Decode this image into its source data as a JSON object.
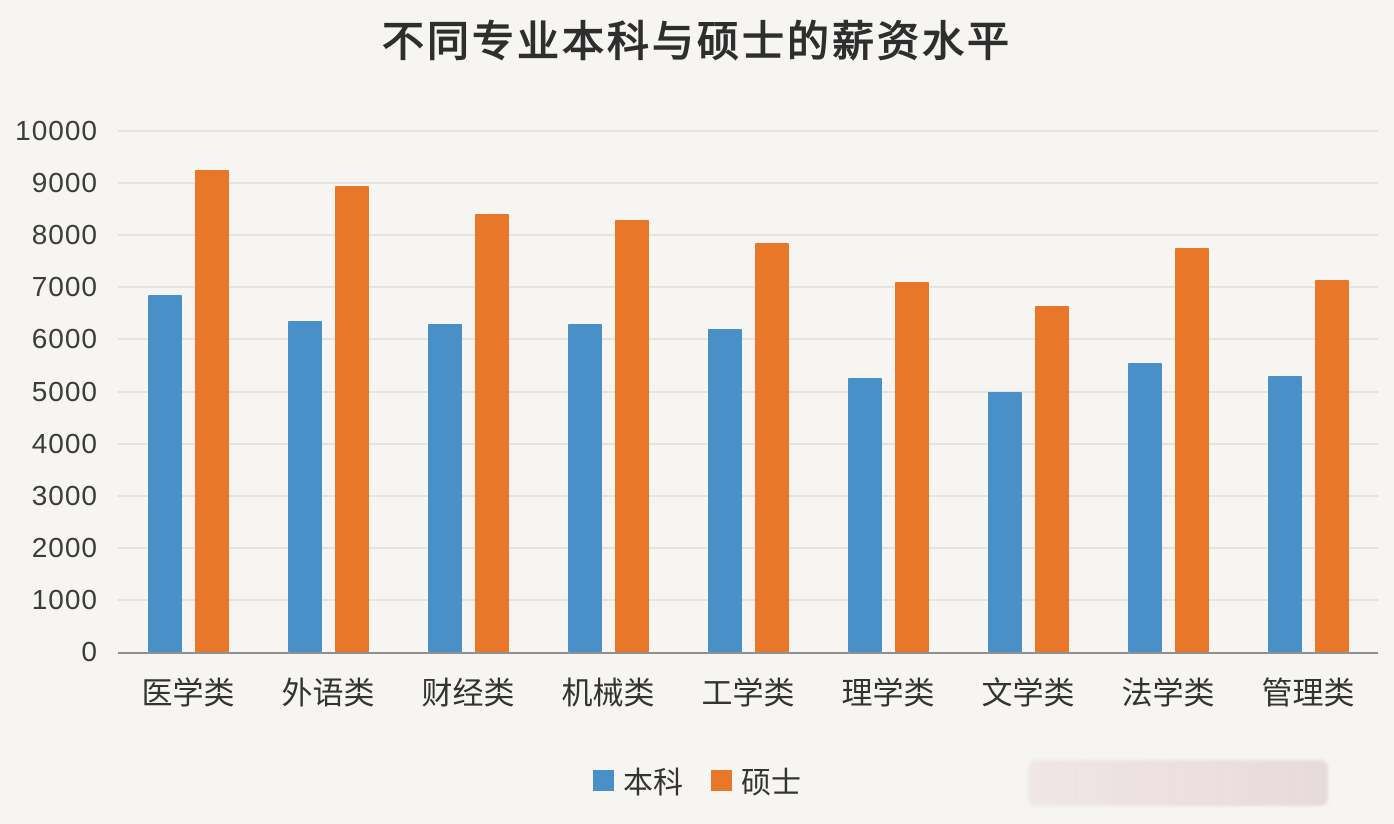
{
  "chart_data": {
    "type": "bar",
    "title": "不同专业本科与硕士的薪资水平",
    "categories": [
      "医学类",
      "外语类",
      "财经类",
      "机械类",
      "工学类",
      "理学类",
      "文学类",
      "法学类",
      "管理类"
    ],
    "series": [
      {
        "name": "本科",
        "color": "#4a90c8",
        "values": [
          6850,
          6350,
          6300,
          6300,
          6200,
          5250,
          5000,
          5550,
          5300
        ]
      },
      {
        "name": "硕士",
        "color": "#e8772a",
        "values": [
          9250,
          8950,
          8400,
          8300,
          7850,
          7100,
          6650,
          7750,
          7150
        ]
      }
    ],
    "xlabel": "",
    "ylabel": "",
    "ylim": [
      0,
      10000
    ],
    "ytick_step": 1000,
    "grid": true,
    "legend_position": "bottom"
  }
}
